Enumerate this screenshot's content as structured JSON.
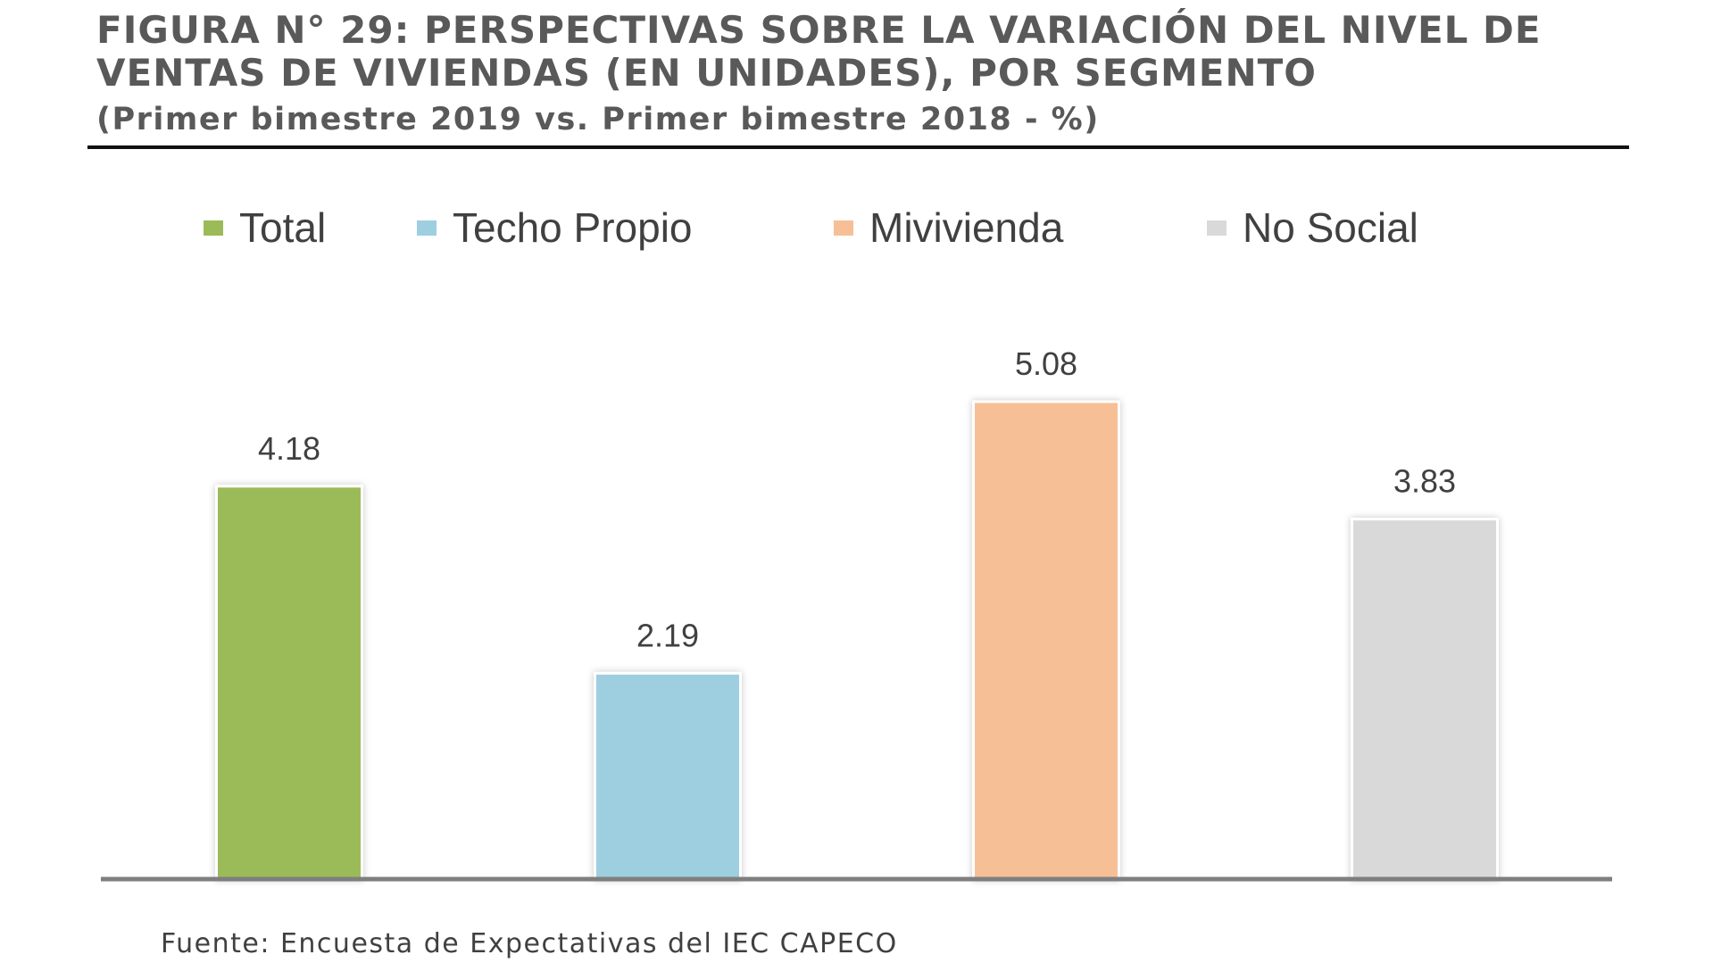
{
  "figure": {
    "title": "FIGURA N° 29: PERSPECTIVAS SOBRE LA VARIACIÓN DEL NIVEL DE VENTAS DE VIVIENDAS (EN UNIDADES), POR SEGMENTO",
    "subtitle": "(Primer bimestre 2019 vs. Primer bimestre 2018  - %)",
    "source": "Fuente: Encuesta de Expectativas del IEC CAPECO"
  },
  "chart_data": {
    "type": "bar",
    "title": "FIGURA N° 29: PERSPECTIVAS SOBRE LA VARIACIÓN DEL NIVEL DE VENTAS DE VIVIENDAS (EN UNIDADES), POR SEGMENTO",
    "subtitle": "(Primer bimestre 2019 vs. Primer bimestre 2018  - %)",
    "categories": [
      "Total",
      "Techo Propio",
      "Mivivienda",
      "No Social"
    ],
    "values": [
      4.18,
      2.19,
      5.08,
      3.83
    ],
    "value_labels": [
      "4.18",
      "2.19",
      "5.08",
      "3.83"
    ],
    "colors": [
      "#9BBB59",
      "#9DCFE0",
      "#F7BF96",
      "#D9D9D9"
    ],
    "ylim": [
      0,
      5.08
    ],
    "grid": false,
    "legend": "top",
    "xlabel": "",
    "ylabel": ""
  }
}
